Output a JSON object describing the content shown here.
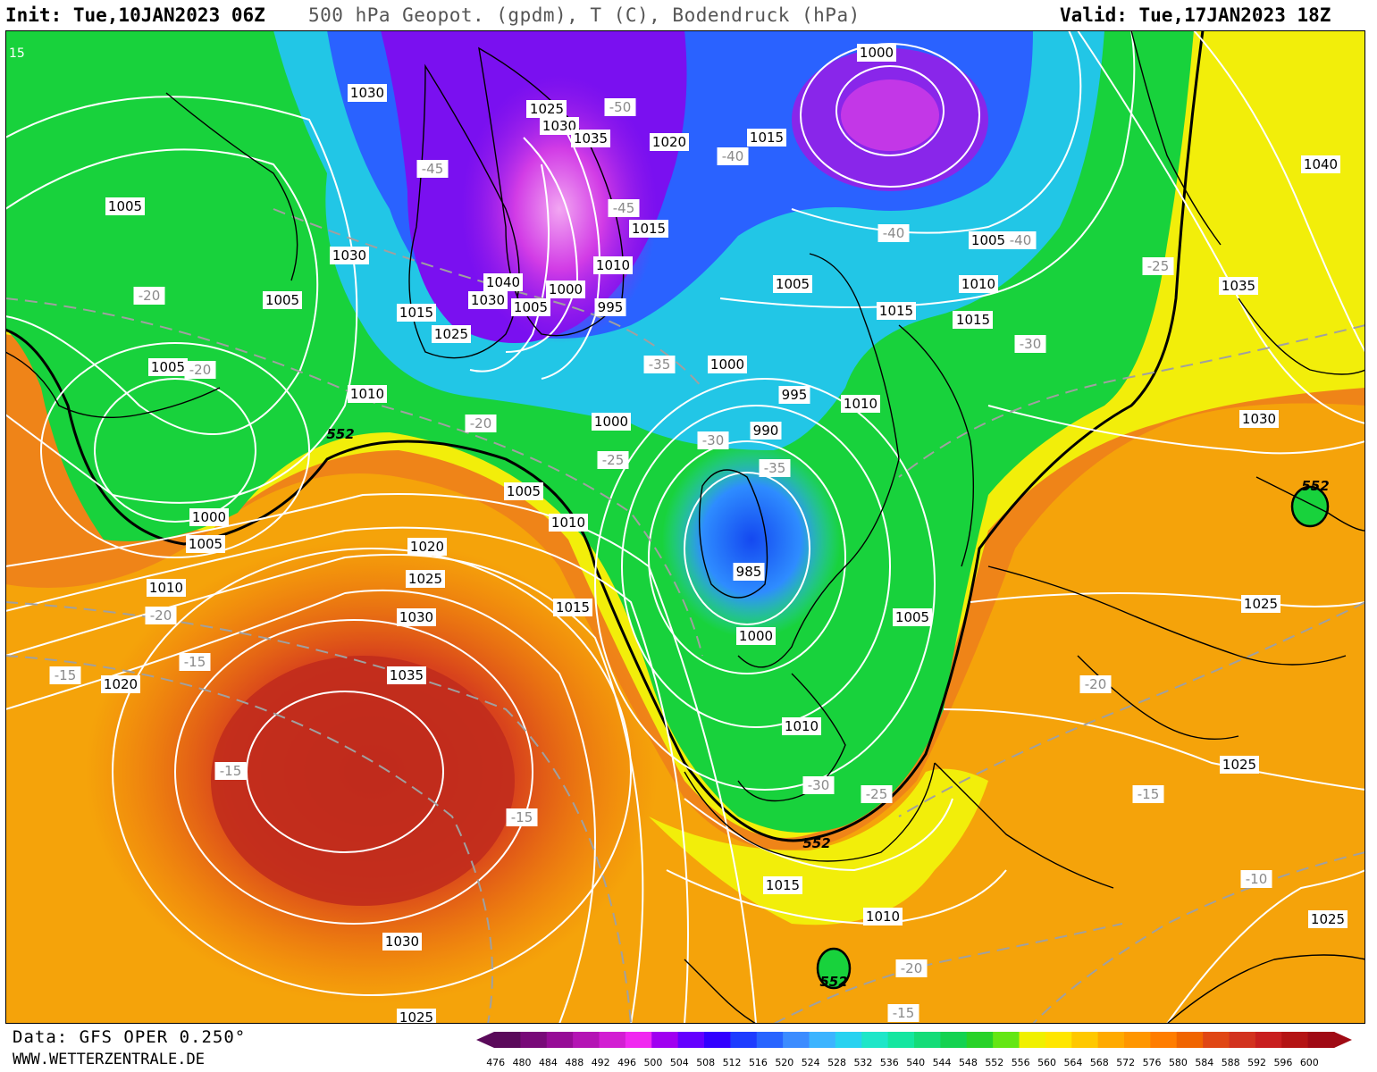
{
  "header": {
    "init": "Init: Tue,10JAN2023 06Z",
    "title": "500 hPa Geopot. (gpdm), T (C), Bodendruck (hPa)",
    "valid": "Valid: Tue,17JAN2023 18Z"
  },
  "footer": {
    "data_source": "Data: GFS OPER 0.250°",
    "url": "WWW.WETTERZENTRALE.DE"
  },
  "colorbar": {
    "levels": [
      "476",
      "480",
      "484",
      "488",
      "492",
      "496",
      "500",
      "504",
      "508",
      "512",
      "516",
      "520",
      "524",
      "528",
      "532",
      "536",
      "540",
      "544",
      "548",
      "552",
      "556",
      "560",
      "564",
      "568",
      "572",
      "576",
      "580",
      "584",
      "588",
      "592",
      "596",
      "600"
    ],
    "colors": [
      "#5a0a5a",
      "#780a78",
      "#960c96",
      "#b414b4",
      "#d21ed2",
      "#f028f0",
      "#a000f0",
      "#6400ff",
      "#3200ff",
      "#1e3cff",
      "#2864ff",
      "#3c8cff",
      "#3cb4ff",
      "#28d2f0",
      "#1ee6c8",
      "#14e6a0",
      "#14dc78",
      "#14d250",
      "#28d228",
      "#64e614",
      "#f0f000",
      "#ffe600",
      "#ffc800",
      "#ffaa00",
      "#ff9600",
      "#ff7d00",
      "#f06400",
      "#e04614",
      "#d2321e",
      "#c81e1e",
      "#b41414",
      "#a00a14"
    ]
  },
  "map_labels": {
    "pressure": [
      {
        "text": "1030",
        "id": "p1"
      },
      {
        "text": "1025",
        "id": "p2"
      },
      {
        "text": "1030",
        "id": "p3"
      },
      {
        "text": "1035",
        "id": "p4"
      },
      {
        "text": "1020",
        "id": "p5"
      },
      {
        "text": "1015",
        "id": "p6"
      },
      {
        "text": "1000",
        "id": "p7"
      },
      {
        "text": "1040",
        "id": "p8"
      },
      {
        "text": "1005",
        "id": "p9"
      },
      {
        "text": "1030",
        "id": "p10"
      },
      {
        "text": "1015",
        "id": "p11"
      },
      {
        "text": "1010",
        "id": "p12"
      },
      {
        "text": "1005",
        "id": "p13"
      },
      {
        "text": "1040",
        "id": "p14"
      },
      {
        "text": "1000",
        "id": "p15"
      },
      {
        "text": "1005",
        "id": "p16"
      },
      {
        "text": "1030",
        "id": "p17"
      },
      {
        "text": "1015",
        "id": "p18"
      },
      {
        "text": "1025",
        "id": "p19"
      },
      {
        "text": "995",
        "id": "p20"
      },
      {
        "text": "1025",
        "id": "p21"
      },
      {
        "text": "1000",
        "id": "p22"
      },
      {
        "text": "1005",
        "id": "p23"
      },
      {
        "text": "1015",
        "id": "p24"
      },
      {
        "text": "1005",
        "id": "p25"
      },
      {
        "text": "1010",
        "id": "p26"
      },
      {
        "text": "1010",
        "id": "p27"
      },
      {
        "text": "1000",
        "id": "p28"
      },
      {
        "text": "995",
        "id": "p29"
      },
      {
        "text": "1010",
        "id": "p30"
      },
      {
        "text": "1030",
        "id": "p31"
      },
      {
        "text": "990",
        "id": "p32"
      },
      {
        "text": "1005",
        "id": "p33"
      },
      {
        "text": "1010",
        "id": "p34"
      },
      {
        "text": "1000",
        "id": "p35"
      },
      {
        "text": "1005",
        "id": "p36"
      },
      {
        "text": "1020",
        "id": "p37"
      },
      {
        "text": "1025",
        "id": "p38"
      },
      {
        "text": "1015",
        "id": "p39"
      },
      {
        "text": "1010",
        "id": "p40"
      },
      {
        "text": "1015",
        "id": "p41"
      },
      {
        "text": "985",
        "id": "p42"
      },
      {
        "text": "1030",
        "id": "p43"
      },
      {
        "text": "1020",
        "id": "p44"
      },
      {
        "text": "1035",
        "id": "p45"
      },
      {
        "text": "1000",
        "id": "p46"
      },
      {
        "text": "1005",
        "id": "p47"
      },
      {
        "text": "1005",
        "id": "p48"
      },
      {
        "text": "1010",
        "id": "p49"
      },
      {
        "text": "1010",
        "id": "p50"
      },
      {
        "text": "1025",
        "id": "p51"
      },
      {
        "text": "1025",
        "id": "p52"
      },
      {
        "text": "1015",
        "id": "p53"
      },
      {
        "text": "1010",
        "id": "p54"
      },
      {
        "text": "1030",
        "id": "p55"
      },
      {
        "text": "1025",
        "id": "p56"
      },
      {
        "text": "1025",
        "id": "p57"
      },
      {
        "text": "1035",
        "id": "p58"
      }
    ],
    "temperature": [
      {
        "text": "-45",
        "id": "t1"
      },
      {
        "text": "-50",
        "id": "t2"
      },
      {
        "text": "-45",
        "id": "t3"
      },
      {
        "text": "-40",
        "id": "t4"
      },
      {
        "text": "-40",
        "id": "t5"
      },
      {
        "text": "-40",
        "id": "t6"
      },
      {
        "text": "-25",
        "id": "t7"
      },
      {
        "text": "-20",
        "id": "t8"
      },
      {
        "text": "-35",
        "id": "t9"
      },
      {
        "text": "-30",
        "id": "t10"
      },
      {
        "text": "-20",
        "id": "t11"
      },
      {
        "text": "-30",
        "id": "t12"
      },
      {
        "text": "-25",
        "id": "t13"
      },
      {
        "text": "-35",
        "id": "t14"
      },
      {
        "text": "-20",
        "id": "t15"
      },
      {
        "text": "-15",
        "id": "t16"
      },
      {
        "text": "-15",
        "id": "t17"
      },
      {
        "text": "-15",
        "id": "t18"
      },
      {
        "text": "-15",
        "id": "t19"
      },
      {
        "text": "-20",
        "id": "t20"
      },
      {
        "text": "-30",
        "id": "t21"
      },
      {
        "text": "-25",
        "id": "t22"
      },
      {
        "text": "-15",
        "id": "t23"
      },
      {
        "text": "-10",
        "id": "t24"
      },
      {
        "text": "-20",
        "id": "t25"
      },
      {
        "text": "-15",
        "id": "t26"
      },
      {
        "text": "-20",
        "id": "t27"
      }
    ],
    "corner": "15",
    "geopotential": [
      {
        "text": "552",
        "id": "g1"
      },
      {
        "text": "552",
        "id": "g2"
      },
      {
        "text": "552",
        "id": "g3"
      },
      {
        "text": "552",
        "id": "g4"
      }
    ]
  }
}
